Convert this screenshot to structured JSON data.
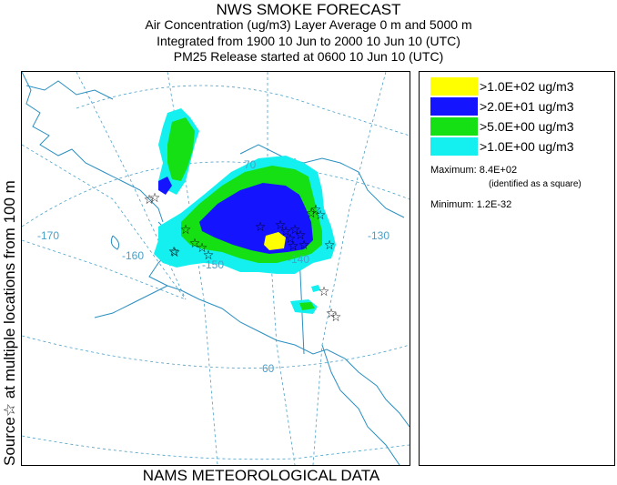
{
  "title": "NWS SMOKE FORECAST",
  "subtitle_lines": [
    "Air Concentration (ug/m3) Layer Average     0 m and  5000 m",
    "Integrated from 1900 10 Jun to 2000 10 Jun 10 (UTC)",
    "PM25 Release started at 0600 10 Jun 10 (UTC)"
  ],
  "side_label": "Source☆   at multiple locations   from   100 m",
  "bottom_label": "NAMS METEOROLOGICAL DATA",
  "map_labels": {
    "lon_170": "-170",
    "lon_160": "-160",
    "lon_150": "-150",
    "lon_140": "-140",
    "lon_130": "-130",
    "lat_70": "70",
    "lat_60": "60"
  },
  "legend": [
    {
      "label": ">1.0E+02 ug/m3",
      "color": "#ffff00"
    },
    {
      "label": ">2.0E+01 ug/m3",
      "color": "#1414ff"
    },
    {
      "label": ">5.0E+00 ug/m3",
      "color": "#14e014"
    },
    {
      "label": ">1.0E+00 ug/m3",
      "color": "#14f0f0"
    }
  ],
  "maximum_text": "Maximum: 8.4E+02",
  "maximum_note": "(identified as a square)",
  "minimum_text": "Minimum: 1.2E-32",
  "colors": {
    "coast": "#2a8fc0",
    "grid": "#4aa0c8",
    "cyan": "#14f0f0",
    "green": "#14e014",
    "blue": "#1414ff",
    "yellow": "#ffff00"
  },
  "source_marker": "☆"
}
